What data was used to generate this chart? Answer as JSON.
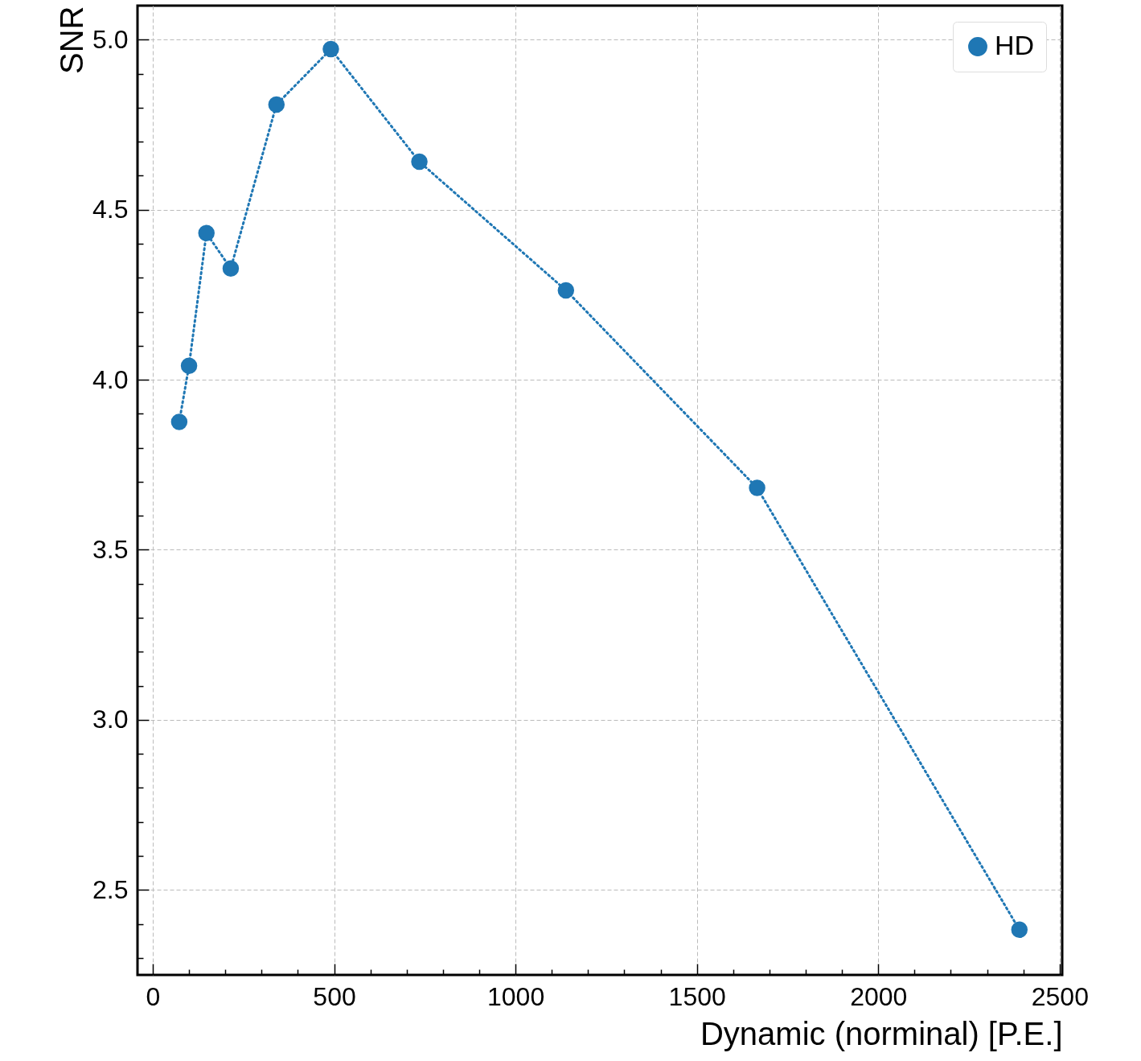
{
  "chart_data": {
    "type": "line",
    "xlabel": "Dynamic (norminal) [P.E.]",
    "ylabel": "SNR",
    "x": [
      73,
      100,
      148,
      215,
      341,
      491,
      735,
      1139,
      1666,
      2389
    ],
    "series": [
      {
        "name": "HD",
        "color": "#1f77b4",
        "values": [
          3.876,
          4.041,
          4.431,
          4.327,
          4.809,
          4.972,
          4.641,
          4.263,
          3.682,
          2.383
        ]
      }
    ],
    "xlim": [
      -42,
      2507
    ],
    "ylim": [
      2.25,
      5.1
    ],
    "xticks": [
      0,
      {
        "value": 100,
        "label": null
      },
      {
        "value": 200,
        "label": null
      },
      {
        "value": 300,
        "label": null
      },
      {
        "value": 400,
        "label": null
      },
      500,
      {
        "value": 600,
        "label": null
      },
      {
        "value": 700,
        "label": null
      },
      {
        "value": 800,
        "label": null
      },
      {
        "value": 900,
        "label": null
      },
      1000,
      {
        "value": 1100,
        "label": null
      },
      {
        "value": 1200,
        "label": null
      },
      {
        "value": 1300,
        "label": null
      },
      {
        "value": 1400,
        "label": null
      },
      1500,
      {
        "value": 1600,
        "label": null
      },
      {
        "value": 1700,
        "label": null
      },
      {
        "value": 1800,
        "label": null
      },
      {
        "value": 1900,
        "label": null
      },
      2000,
      {
        "value": 2100,
        "label": null
      },
      {
        "value": 2200,
        "label": null
      },
      {
        "value": 2300,
        "label": null
      },
      {
        "value": 2400,
        "label": null
      },
      2500
    ],
    "yticks": [
      {
        "value": 2.3,
        "label": null
      },
      {
        "value": 2.4,
        "label": null
      },
      {
        "value": 2.5,
        "label": "2.5"
      },
      {
        "value": 2.6,
        "label": null
      },
      {
        "value": 2.7,
        "label": null
      },
      {
        "value": 2.8,
        "label": null
      },
      {
        "value": 2.9,
        "label": null
      },
      {
        "value": 3.0,
        "label": "3.0"
      },
      {
        "value": 3.1,
        "label": null
      },
      {
        "value": 3.2,
        "label": null
      },
      {
        "value": 3.3,
        "label": null
      },
      {
        "value": 3.4,
        "label": null
      },
      {
        "value": 3.5,
        "label": "3.5"
      },
      {
        "value": 3.6,
        "label": null
      },
      {
        "value": 3.7,
        "label": null
      },
      {
        "value": 3.8,
        "label": null
      },
      {
        "value": 3.9,
        "label": null
      },
      {
        "value": 4.0,
        "label": "4.0"
      },
      {
        "value": 4.1,
        "label": null
      },
      {
        "value": 4.2,
        "label": null
      },
      {
        "value": 4.3,
        "label": null
      },
      {
        "value": 4.4,
        "label": null
      },
      {
        "value": 4.5,
        "label": "4.5"
      },
      {
        "value": 4.6,
        "label": null
      },
      {
        "value": 4.7,
        "label": null
      },
      {
        "value": 4.8,
        "label": null
      },
      {
        "value": 4.9,
        "label": null
      },
      {
        "value": 5.0,
        "label": "5.0"
      }
    ],
    "grid": true,
    "legend": "top right",
    "marker": "circle",
    "line_style": "dotted"
  }
}
